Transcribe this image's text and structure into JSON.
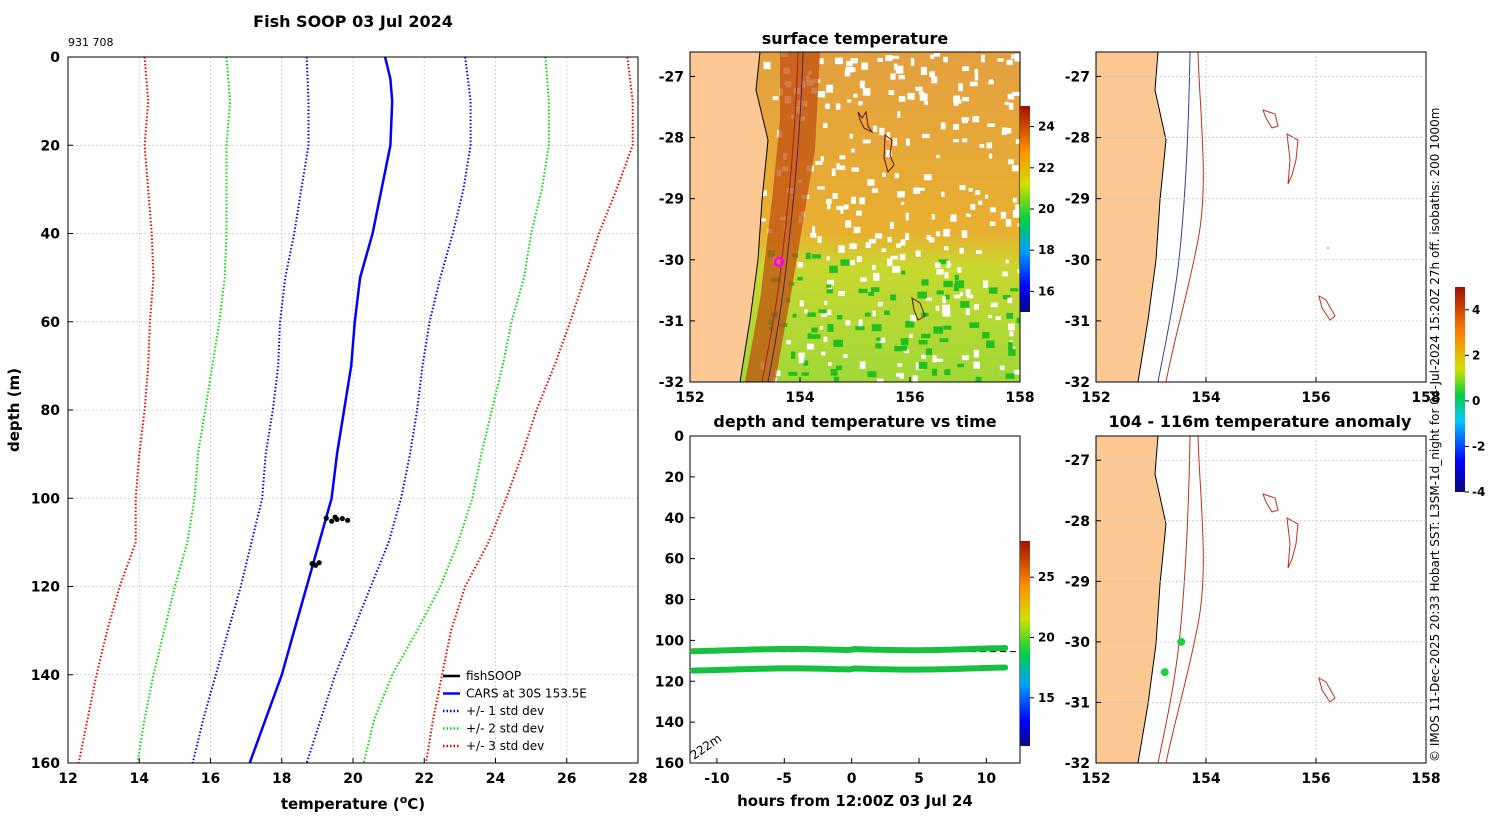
{
  "title": "Fish SOOP 03 Jul 2024",
  "id_text": "931 708",
  "credit": "© IMOS 11-Dec-2025 20:33 Hobart SST: L3SM-1d_night for 04-Jul-2024 15:20Z 27h off. isobaths: 200  1000m",
  "colors": {
    "cars": "#0000ff",
    "std1": "#0000ff",
    "std2": "#00dd00",
    "std3": "#ee0000",
    "fish": "#000000",
    "land": "#fcc894"
  },
  "chart_data": [
    {
      "type": "line",
      "title": "Fish SOOP 03 Jul 2024",
      "xlabel": "temperature (°C)",
      "ylabel": "depth (m)",
      "xlim": [
        12,
        28
      ],
      "ylim": [
        0,
        160
      ],
      "yreversed": true,
      "xticks": [
        12,
        14,
        16,
        18,
        20,
        22,
        24,
        26,
        28
      ],
      "yticks": [
        0,
        20,
        40,
        60,
        80,
        100,
        120,
        140,
        160
      ],
      "series": [
        {
          "name": "CARS at 30S 153.5E",
          "style": "solid",
          "color": "#0000ff",
          "depth": [
            0,
            5,
            10,
            20,
            30,
            40,
            50,
            60,
            70,
            80,
            90,
            100,
            110,
            120,
            130,
            140,
            150,
            160
          ],
          "temp": [
            20.9,
            21.05,
            21.1,
            21.05,
            20.8,
            20.55,
            20.2,
            20.05,
            19.95,
            19.75,
            19.55,
            19.4,
            19.05,
            18.7,
            18.35,
            18.0,
            17.55,
            17.1
          ]
        },
        {
          "name": "+1 std dev",
          "style": "dotted",
          "color": "#0000ff",
          "depth": [
            0,
            10,
            20,
            30,
            40,
            50,
            60,
            70,
            80,
            90,
            100,
            110,
            120,
            130,
            140,
            150,
            160
          ],
          "temp": [
            23.15,
            23.3,
            23.3,
            23.1,
            22.8,
            22.45,
            22.15,
            21.95,
            21.8,
            21.6,
            21.35,
            21.0,
            20.5,
            20.0,
            19.5,
            19.1,
            18.7
          ]
        },
        {
          "name": "-1 std dev",
          "style": "dotted",
          "color": "#0000ff",
          "depth": [
            0,
            10,
            20,
            30,
            40,
            50,
            60,
            70,
            80,
            90,
            100,
            110,
            120,
            130,
            140,
            150,
            160
          ],
          "temp": [
            18.7,
            18.75,
            18.75,
            18.55,
            18.35,
            18.1,
            17.95,
            17.9,
            17.75,
            17.55,
            17.45,
            17.15,
            16.85,
            16.5,
            16.15,
            15.8,
            15.5
          ]
        },
        {
          "name": "+2 std dev",
          "style": "dotted",
          "color": "#00dd00",
          "depth": [
            0,
            10,
            20,
            30,
            40,
            50,
            60,
            70,
            80,
            90,
            100,
            110,
            120,
            130,
            140,
            150,
            160
          ],
          "temp": [
            25.4,
            25.5,
            25.5,
            25.3,
            25.0,
            24.8,
            24.45,
            24.2,
            23.9,
            23.6,
            23.35,
            22.95,
            22.45,
            21.8,
            21.1,
            20.6,
            20.3
          ]
        },
        {
          "name": "-2 std dev",
          "style": "dotted",
          "color": "#00dd00",
          "depth": [
            0,
            10,
            20,
            30,
            40,
            50,
            60,
            70,
            80,
            90,
            100,
            110,
            120,
            130,
            140,
            150,
            160
          ],
          "temp": [
            16.45,
            16.55,
            16.45,
            16.45,
            16.45,
            16.4,
            16.25,
            16.05,
            15.85,
            15.65,
            15.55,
            15.35,
            15.0,
            14.7,
            14.4,
            14.15,
            13.95
          ]
        },
        {
          "name": "+3 std dev",
          "style": "dotted",
          "color": "#ee0000",
          "depth": [
            0,
            10,
            20,
            30,
            40,
            50,
            60,
            70,
            80,
            90,
            100,
            110,
            120,
            130,
            140,
            150,
            160
          ],
          "temp": [
            27.7,
            27.85,
            27.85,
            27.4,
            26.9,
            26.5,
            26.1,
            25.65,
            25.15,
            24.75,
            24.3,
            23.8,
            23.15,
            22.75,
            22.5,
            22.25,
            22.05
          ]
        },
        {
          "name": "-3 std dev",
          "style": "dotted",
          "color": "#ee0000",
          "depth": [
            0,
            10,
            20,
            30,
            40,
            50,
            60,
            70,
            80,
            90,
            100,
            110,
            120,
            130,
            140,
            150,
            160
          ],
          "temp": [
            14.15,
            14.25,
            14.15,
            14.25,
            14.35,
            14.4,
            14.3,
            14.25,
            14.15,
            14.0,
            13.9,
            13.9,
            13.45,
            13.1,
            12.8,
            12.55,
            12.3
          ]
        },
        {
          "name": "fishSOOP",
          "style": "points",
          "color": "#000000",
          "depth": [
            104.5,
            105.2,
            104.8,
            104.6,
            105.0,
            104.3,
            114.8,
            115.2,
            114.6,
            115.0
          ],
          "temp": [
            19.25,
            19.4,
            19.55,
            19.7,
            19.85,
            19.5,
            18.85,
            18.95,
            19.05,
            18.9
          ]
        }
      ],
      "legend": {
        "position": "bottom-right",
        "entries": [
          "fishSOOP",
          "CARS at 30S 153.5E",
          "+/- 1 std dev",
          "+/- 2 std dev",
          "+/- 3 std dev"
        ]
      }
    },
    {
      "type": "heatmap",
      "title": "surface temperature",
      "xticks": [
        "152",
        "154",
        "156",
        "158"
      ],
      "yticks": [
        "-27",
        "-28",
        "-29",
        "-30",
        "-31",
        "-32"
      ],
      "xlim": [
        152,
        158
      ],
      "ylim": [
        -32,
        -26.6
      ],
      "colorbar": {
        "min": 15,
        "max": 25,
        "ticks": [
          "16",
          "18",
          "20",
          "22",
          "24"
        ]
      },
      "marker": {
        "lon": 153.55,
        "lat": -30.0
      }
    },
    {
      "type": "scatter",
      "title": "depth and temperature vs time",
      "xlabel": "hours from 12:00Z 03 Jul 24",
      "xlim": [
        -12,
        12.5
      ],
      "ylim": [
        0,
        160
      ],
      "yreversed": true,
      "xticks": [
        "-10",
        "-5",
        "0",
        "5",
        "10"
      ],
      "yticks": [
        "0",
        "20",
        "40",
        "60",
        "80",
        "100",
        "120",
        "140",
        "160"
      ],
      "series": [
        {
          "name": "upper depth band",
          "depth": 104.5,
          "temp": 19.5
        },
        {
          "name": "lower depth band",
          "depth": 114.0,
          "temp": 19.5
        }
      ],
      "reference_line_depth": 105.5,
      "annotation": "222m",
      "colorbar": {
        "min": 11,
        "max": 28,
        "ticks": [
          "15",
          "20",
          "25"
        ]
      }
    },
    {
      "type": "heatmap",
      "title": "",
      "xticks": [
        "152",
        "154",
        "156",
        "158"
      ],
      "yticks": [
        "-27",
        "-28",
        "-29",
        "-30",
        "-31",
        "-32"
      ],
      "xlim": [
        152,
        158
      ],
      "ylim": [
        -32,
        -26.6
      ]
    },
    {
      "type": "scatter",
      "title": "104 - 116m temperature anomaly",
      "xticks": [
        "152",
        "154",
        "156",
        "158"
      ],
      "yticks": [
        "-27",
        "-28",
        "-29",
        "-30",
        "-31",
        "-32"
      ],
      "xlim": [
        152,
        158
      ],
      "ylim": [
        -32,
        -26.6
      ],
      "points": [
        {
          "lon": 153.55,
          "lat": -30.0,
          "anomaly": 0.4
        },
        {
          "lon": 153.25,
          "lat": -30.5,
          "anomaly": 0.3
        }
      ],
      "colorbar": {
        "min": -4,
        "max": 5,
        "ticks": [
          "4",
          "2",
          "0",
          "-2",
          "-4"
        ]
      }
    }
  ]
}
